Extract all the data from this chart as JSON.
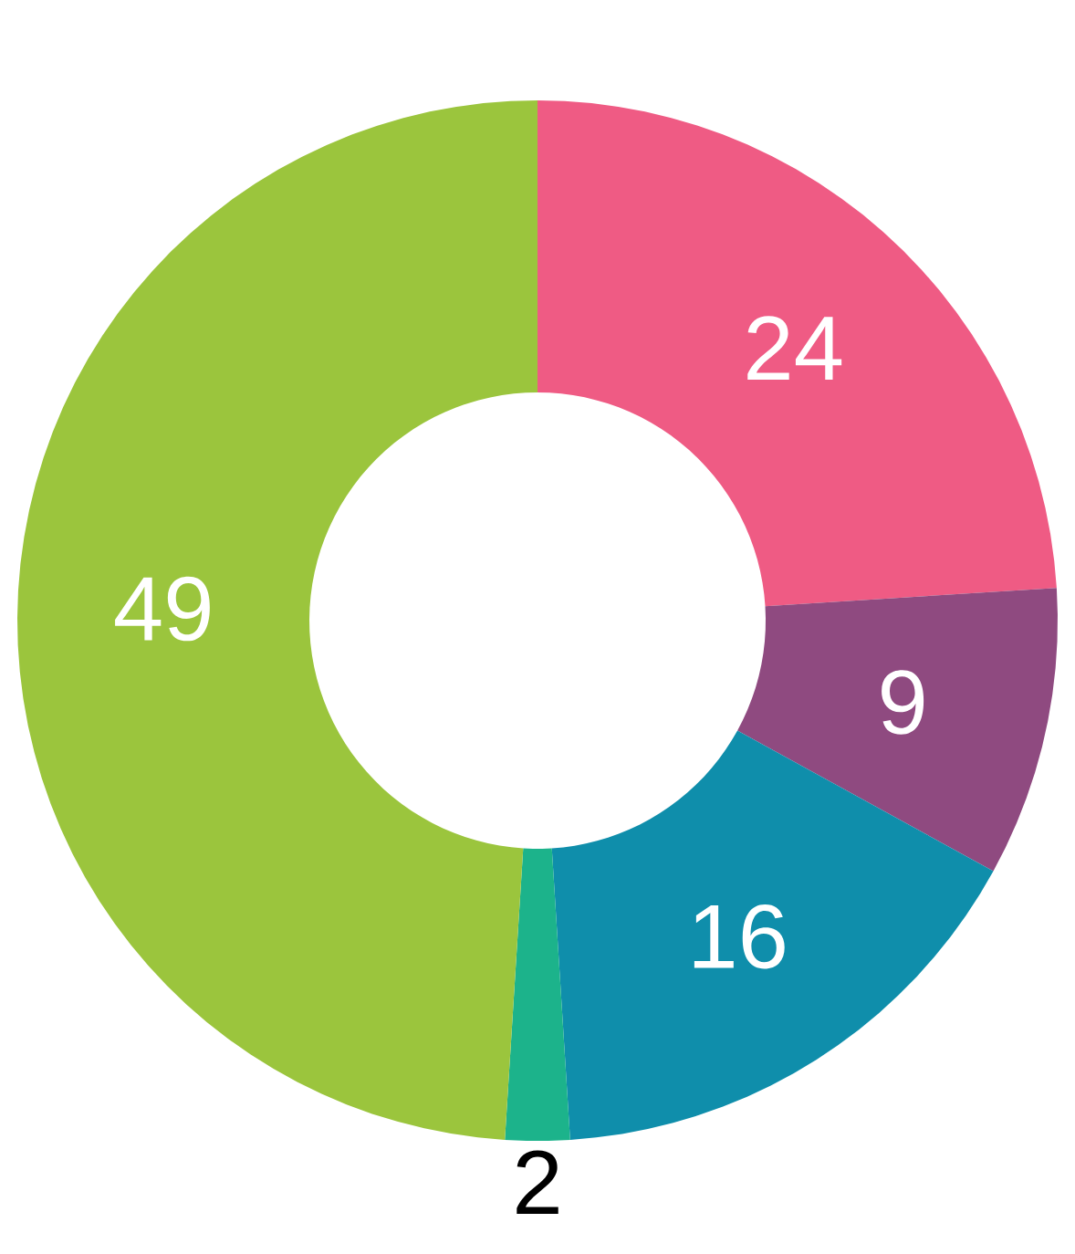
{
  "chart_data": {
    "type": "donut",
    "categories": [
      null,
      null,
      null,
      null,
      null
    ],
    "values": [
      24,
      9,
      16,
      2,
      49
    ],
    "colors": [
      "#ef5b84",
      "#8f4a80",
      "#0f8eab",
      "#1cb38b",
      "#9bc53d"
    ],
    "data_labels": true
  }
}
